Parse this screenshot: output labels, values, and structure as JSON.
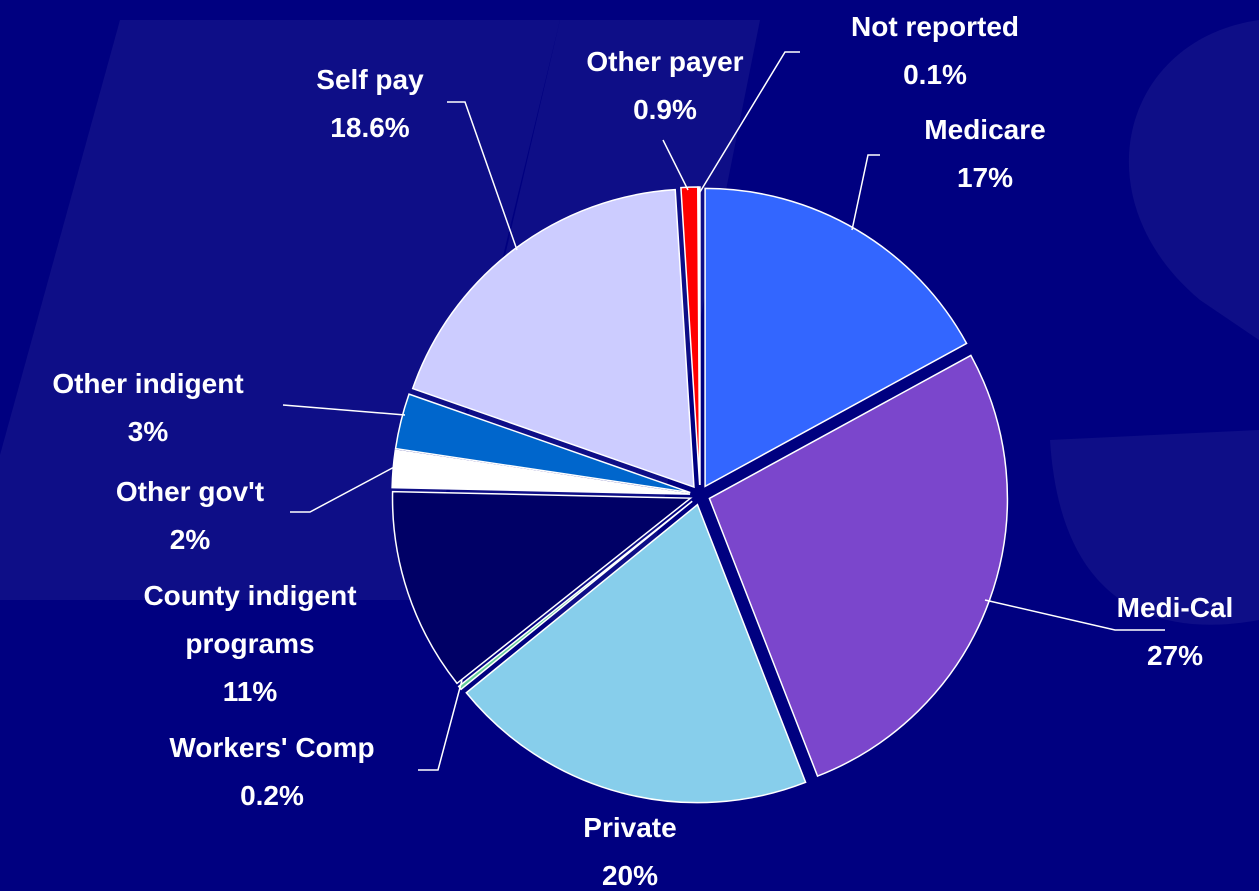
{
  "chart_data": {
    "type": "pie",
    "categories": [
      "Medicare",
      "Medi-Cal",
      "Private",
      "Workers' Comp",
      "County indigent programs",
      "Other gov't",
      "Other indigent",
      "Self pay",
      "Other payer",
      "Not reported"
    ],
    "values": [
      17,
      27,
      20,
      0.2,
      11,
      2,
      3,
      18.6,
      0.9,
      0.1
    ],
    "value_labels": [
      "17%",
      "27%",
      "20%",
      "0.2%",
      "11%",
      "2%",
      "3%",
      "18.6%",
      "0.9%",
      "0.1%"
    ],
    "colors": [
      "#3366ff",
      "#7b46cc",
      "#87ceeb",
      "#66cc99",
      "#000066",
      "#ffffff",
      "#0066cc",
      "#ccccff",
      "#ff0000",
      "#ffffff"
    ]
  }
}
